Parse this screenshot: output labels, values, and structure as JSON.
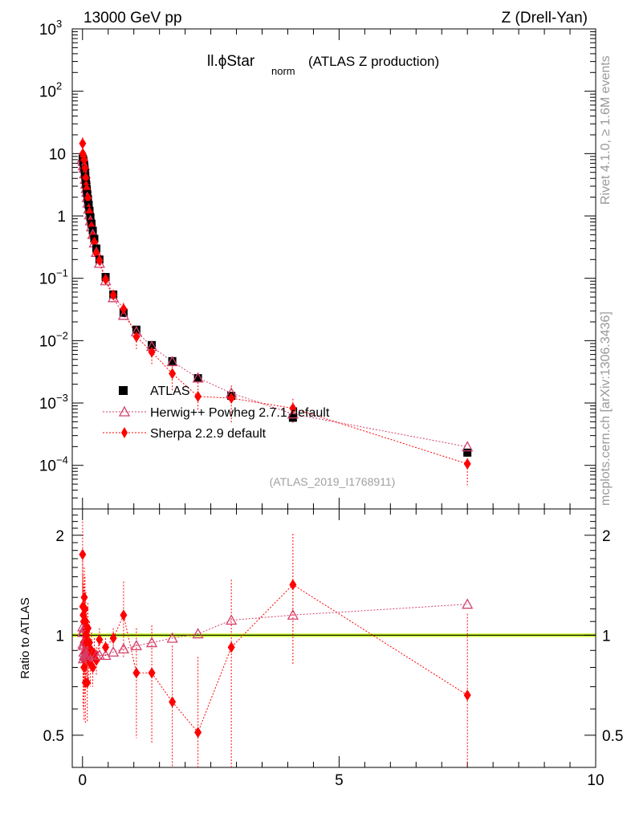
{
  "header": {
    "left": "13000 GeV pp",
    "right": "Z (Drell-Yan)",
    "title_main": "ll.ϕStar",
    "title_sub": "norm",
    "title_rest": "(ATLAS Z production)"
  },
  "side_text": {
    "rivet": "Rivet 4.1.0, ≥ 1.6M events",
    "mcplots": "mcplots.cern.ch [arXiv:1306.3436]"
  },
  "reference": "(ATLAS_2019_I1768911)",
  "legend": {
    "atlas": "ATLAS",
    "herwig": "Herwig++ Powheg 2.7.1 default",
    "sherpa": "Sherpa 2.2.9 default"
  },
  "colors": {
    "atlas": "#000000",
    "herwig": "#d2416e",
    "sherpa": "#ff0000",
    "band": "#ccff33",
    "ratio_line": "#000000"
  },
  "chart_data": {
    "type": "scatter",
    "x_ticks": [
      "0",
      "5",
      "10"
    ],
    "xlim": [
      -0.2,
      10
    ],
    "main": {
      "yscale": "log",
      "ylim": [
        2e-05,
        1000
      ],
      "y_ticks": [
        {
          "value": 1000,
          "base": "10",
          "exp": "3"
        },
        {
          "value": 100,
          "base": "10",
          "exp": "2"
        },
        {
          "value": 10,
          "base": "10",
          "exp": ""
        },
        {
          "value": 1,
          "base": "1",
          "exp": ""
        },
        {
          "value": 0.1,
          "base": "10",
          "exp": "−1"
        },
        {
          "value": 0.01,
          "base": "10",
          "exp": "−2"
        },
        {
          "value": 0.001,
          "base": "10",
          "exp": "−3"
        },
        {
          "value": 0.0001,
          "base": "10",
          "exp": "−4"
        }
      ]
    },
    "ratio": {
      "ylabel": "Ratio to ATLAS",
      "yscale": "log",
      "ylim": [
        0.4,
        2.4
      ],
      "y_ticks": [
        {
          "value": 2,
          "label": "2"
        },
        {
          "value": 1,
          "label": "1"
        },
        {
          "value": 0.5,
          "label": "0.5"
        }
      ]
    },
    "x": [
      0.002,
      0.006,
      0.01,
      0.014,
      0.018,
      0.023,
      0.029,
      0.035,
      0.041,
      0.048,
      0.055,
      0.063,
      0.072,
      0.082,
      0.093,
      0.106,
      0.12,
      0.136,
      0.154,
      0.175,
      0.2,
      0.23,
      0.27,
      0.33,
      0.45,
      0.6,
      0.8,
      1.05,
      1.35,
      1.75,
      2.25,
      2.9,
      4.1,
      7.5
    ],
    "series": [
      {
        "name": "ATLAS",
        "values": [
          8.3,
          8.2,
          8.0,
          7.8,
          7.5,
          7.1,
          6.6,
          6.1,
          5.5,
          4.9,
          4.3,
          3.7,
          3.2,
          2.7,
          2.25,
          1.85,
          1.5,
          1.2,
          0.95,
          0.75,
          0.58,
          0.43,
          0.3,
          0.2,
          0.105,
          0.055,
          0.028,
          0.015,
          0.0085,
          0.0047,
          0.0025,
          0.0013,
          0.00058,
          0.00016
        ]
      },
      {
        "name": "Herwig++ Powheg 2.7.1 default",
        "ratios": [
          1.02,
          1.06,
          0.94,
          1.02,
          0.85,
          0.93,
          0.89,
          1.05,
          0.87,
          0.96,
          0.9,
          0.88,
          0.86,
          0.89,
          0.88,
          0.87,
          0.86,
          0.87,
          0.88,
          0.89,
          0.87,
          0.86,
          0.87,
          0.87,
          0.87,
          0.89,
          0.91,
          0.93,
          0.95,
          0.98,
          1.01,
          1.11,
          1.15,
          1.24
        ]
      },
      {
        "name": "Sherpa 2.2.9 default",
        "ratios": [
          1.75,
          1.22,
          0.85,
          1.15,
          0.95,
          1.1,
          0.8,
          1.3,
          0.88,
          1.2,
          0.72,
          1.1,
          0.95,
          1.0,
          0.72,
          1.05,
          0.85,
          0.95,
          0.82,
          0.9,
          0.8,
          0.88,
          0.84,
          0.97,
          0.92,
          0.98,
          1.15,
          0.77,
          0.77,
          0.63,
          0.51,
          0.92,
          1.42,
          0.66
        ],
        "ratio_errors": [
          0.45,
          0.3,
          0.25,
          0.28,
          0.22,
          0.3,
          0.25,
          0.3,
          0.22,
          0.3,
          0.18,
          0.25,
          0.2,
          0.22,
          0.17,
          0.2,
          0.15,
          0.15,
          0.12,
          0.12,
          0.1,
          0.1,
          0.08,
          0.08,
          0.06,
          0.07,
          0.3,
          0.28,
          0.3,
          0.3,
          0.35,
          0.55,
          0.6,
          0.5
        ]
      }
    ]
  }
}
